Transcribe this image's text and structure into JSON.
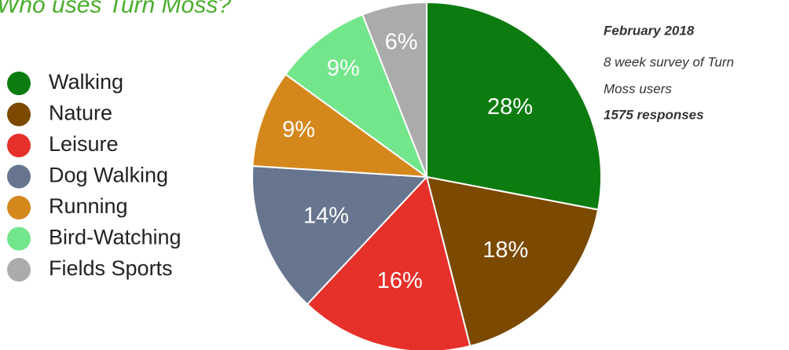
{
  "chart_data": {
    "type": "pie",
    "title": "Who uses Turn Moss?",
    "categories": [
      "Walking",
      "Nature",
      "Leisure",
      "Dog Walking",
      "Running",
      "Bird-Watching",
      "Fields Sports"
    ],
    "values": [
      28,
      18,
      16,
      14,
      9,
      9,
      6
    ],
    "value_labels": [
      "28%",
      "18%",
      "16%",
      "14%",
      "9%",
      "9%",
      "6%"
    ],
    "colors": [
      "#0d7c10",
      "#7b4900",
      "#e6302a",
      "#67758e",
      "#d4881c",
      "#73e68c",
      "#ababac"
    ],
    "annotations": [
      "February 2018",
      "8 week survey of Turn",
      "Moss users",
      "1575 responses"
    ],
    "legend": "left"
  }
}
